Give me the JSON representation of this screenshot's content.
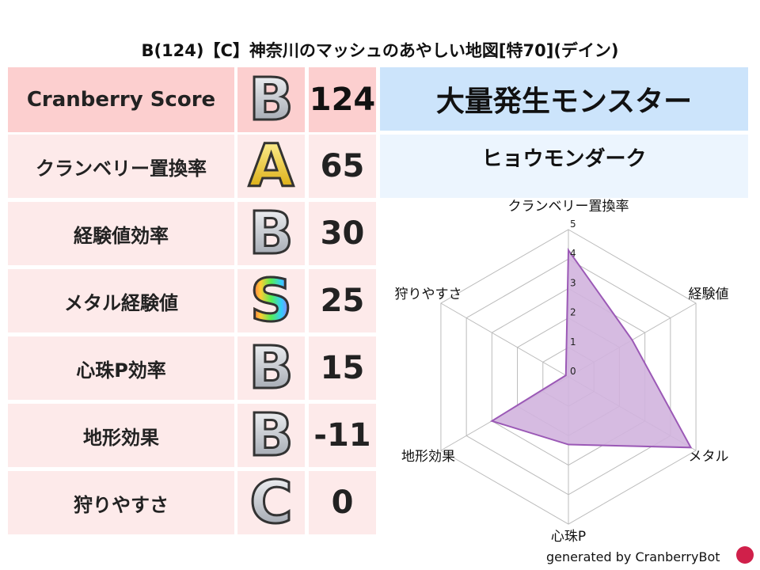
{
  "title": "B(124)【C】神奈川のマッシュのあやしい地図[特70](デイン)",
  "rows": [
    {
      "label": "Cranberry Score",
      "rank": "B",
      "value": "124"
    },
    {
      "label": "クランベリー置換率",
      "rank": "A",
      "value": "65"
    },
    {
      "label": "経験値効率",
      "rank": "B",
      "value": "30"
    },
    {
      "label": "メタル経験値",
      "rank": "S",
      "value": "25"
    },
    {
      "label": "心珠P効率",
      "rank": "B",
      "value": "15"
    },
    {
      "label": "地形効果",
      "rank": "B",
      "value": "-11"
    },
    {
      "label": "狩りやすさ",
      "rank": "C",
      "value": "0"
    }
  ],
  "monster": {
    "header": "大量発生モンスター",
    "name": "ヒョウモンダーク"
  },
  "chart_data": {
    "type": "radar",
    "axes": [
      "クランベリー置換率",
      "経験値",
      "メタル",
      "心珠P",
      "地形効果",
      "狩りやすさ"
    ],
    "values": [
      4.3,
      2.5,
      4.8,
      2.3,
      3.0,
      0.1
    ],
    "ticks": [
      "0",
      "1",
      "2",
      "3",
      "4",
      "5"
    ],
    "range": [
      0,
      5
    ],
    "color": "#9b59b6",
    "fill": "#d2b4de"
  },
  "footer": "generated by CranberryBot"
}
